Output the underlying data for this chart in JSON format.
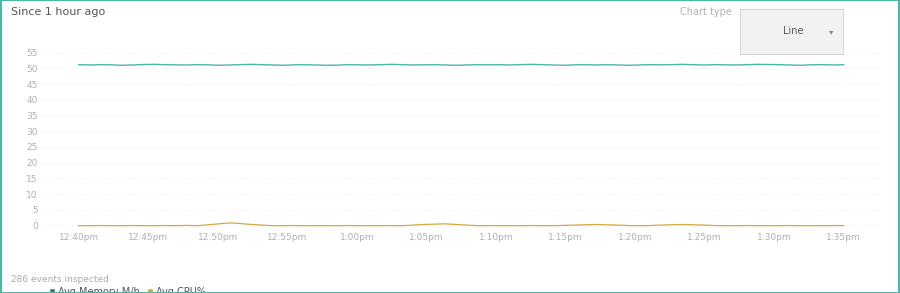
{
  "title": "Since 1 hour ago",
  "footer": "286 events inspected",
  "chart_type_label": "Chart type",
  "chart_type_value": "Line",
  "x_labels": [
    "12:40pm",
    "12:45pm",
    "12:50pm",
    "12:55pm",
    "1:00pm",
    "1:05pm",
    "1:10pm",
    "1:15pm",
    "1:20pm",
    "1:25pm",
    "1:30pm",
    "1:35pm"
  ],
  "ylim": [
    -1,
    55
  ],
  "yticks": [
    0,
    5,
    10,
    15,
    20,
    25,
    30,
    35,
    40,
    45,
    50,
    55
  ],
  "memory_color": "#4db6a6",
  "cpu_color": "#d4a843",
  "memory_label": "Avg Memory M/b",
  "cpu_label": "Avg CPU%",
  "legend_dot_memory": "#2e7d5e",
  "bg_color": "#ffffff",
  "border_color": "#4db6a6",
  "title_color": "#555555",
  "tick_color": "#b0b0b0",
  "grid_color": "#e8e8e8",
  "footer_color": "#aaaaaa",
  "memory_values": [
    51.2,
    51.1,
    51.2,
    51.15,
    51.0,
    51.1,
    51.25,
    51.3,
    51.2,
    51.15,
    51.1,
    51.2,
    51.15,
    51.0,
    51.1,
    51.2,
    51.3,
    51.2,
    51.1,
    51.0,
    51.15,
    51.2,
    51.1,
    51.0,
    51.05,
    51.2,
    51.15,
    51.1,
    51.2,
    51.3,
    51.2,
    51.1,
    51.15,
    51.2,
    51.1,
    51.0,
    51.1,
    51.2,
    51.15,
    51.2,
    51.1,
    51.2,
    51.3,
    51.2,
    51.1,
    51.0,
    51.15,
    51.2,
    51.1,
    51.2,
    51.1,
    51.0,
    51.1,
    51.2,
    51.15,
    51.2,
    51.3,
    51.2,
    51.1,
    51.2,
    51.15,
    51.1,
    51.2,
    51.3,
    51.25,
    51.2,
    51.1,
    51.0,
    51.15,
    51.2,
    51.1,
    51.2
  ],
  "cpu_values": [
    -0.1,
    -0.1,
    -0.05,
    -0.1,
    -0.1,
    -0.05,
    -0.1,
    -0.1,
    -0.05,
    -0.1,
    0.0,
    -0.1,
    0.2,
    0.5,
    0.8,
    0.6,
    0.3,
    0.1,
    -0.1,
    -0.1,
    -0.05,
    -0.1,
    -0.1,
    -0.1,
    -0.1,
    -0.05,
    -0.1,
    -0.1,
    -0.1,
    -0.05,
    -0.1,
    0.1,
    0.3,
    0.4,
    0.5,
    0.3,
    0.1,
    -0.1,
    -0.05,
    -0.1,
    -0.1,
    -0.1,
    -0.05,
    -0.1,
    -0.1,
    0.0,
    0.1,
    0.2,
    0.3,
    0.2,
    0.1,
    -0.05,
    -0.1,
    -0.05,
    0.1,
    0.2,
    0.3,
    0.2,
    0.1,
    -0.05,
    -0.1,
    -0.1,
    -0.05,
    -0.1,
    -0.1,
    -0.1,
    -0.05,
    -0.1,
    -0.1,
    -0.1,
    -0.05,
    -0.1
  ]
}
